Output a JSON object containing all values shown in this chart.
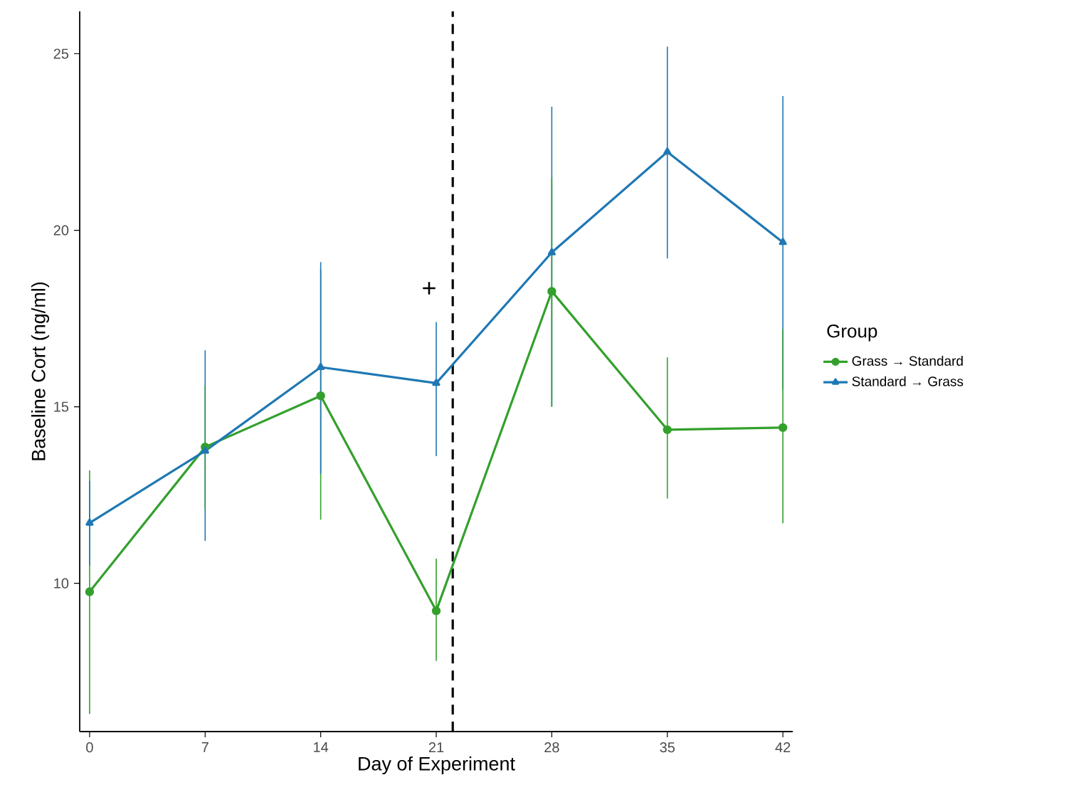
{
  "chart_data": {
    "type": "line",
    "xlabel": "Day of Experiment",
    "ylabel": "Baseline Cort (ng/ml)",
    "legend_title": "Group",
    "legend": "right",
    "x": [
      0,
      7,
      14,
      21,
      28,
      35,
      42
    ],
    "xlim": [
      -0.6,
      42.6
    ],
    "ylim": [
      5.8,
      26.2
    ],
    "xticks": [
      0,
      7,
      14,
      21,
      28,
      35,
      42
    ],
    "yticks": [
      10,
      15,
      20,
      25
    ],
    "series": [
      {
        "name": "Grass → Standard",
        "color": "#33a02c",
        "marker": "circle",
        "values": [
          9.76,
          13.86,
          15.31,
          9.22,
          18.27,
          14.35,
          14.41
        ],
        "errors": [
          [
            6.3,
            13.2
          ],
          [
            12.1,
            15.6
          ],
          [
            11.8,
            18.9
          ],
          [
            7.8,
            10.7
          ],
          [
            15.0,
            21.5
          ],
          [
            12.4,
            16.4
          ],
          [
            11.7,
            17.2
          ]
        ]
      },
      {
        "name": "Standard → Grass",
        "color": "#1f78b4",
        "marker": "triangle",
        "values": [
          11.71,
          13.75,
          16.12,
          15.67,
          19.37,
          22.22,
          19.66
        ],
        "errors": [
          [
            10.5,
            12.9
          ],
          [
            11.2,
            16.6
          ],
          [
            13.1,
            19.1
          ],
          [
            13.6,
            17.4
          ],
          [
            15.0,
            23.5
          ],
          [
            19.2,
            25.2
          ],
          [
            15.5,
            23.8
          ]
        ]
      }
    ],
    "ref_lines": [
      {
        "axis": "x",
        "value": 22,
        "color": "#000000",
        "line_style": "dashed"
      }
    ],
    "annotations": [
      "+"
    ]
  }
}
